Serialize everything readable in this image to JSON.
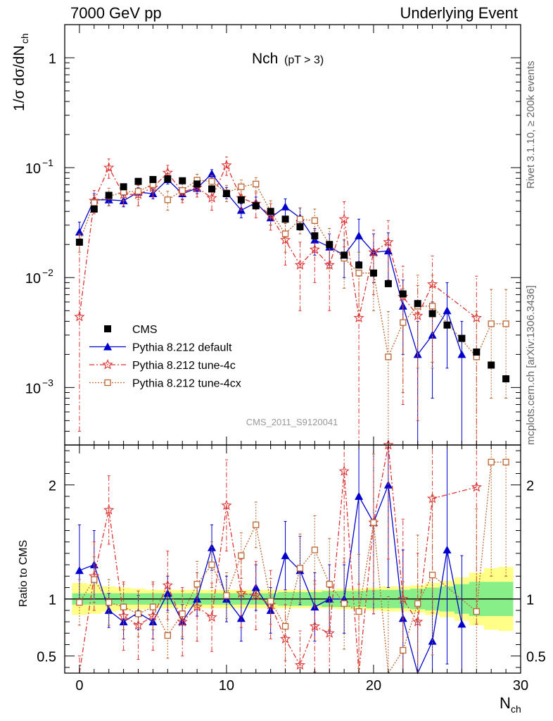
{
  "header": {
    "left": "7000 GeV pp",
    "right": "Underlying Event"
  },
  "side_labels": {
    "rivet": "Rivet 3.1.10, ≥ 200k events",
    "mcplots": "mcplots.cern.ch [arXiv:1306.3436]"
  },
  "chart_data": {
    "type": "scatter",
    "title": "Nch",
    "title_sub": "(pT >  3)",
    "watermark": "CMS_2011_S9120041",
    "xlabel": "N",
    "xlabel_sub": "ch",
    "ylabel_main": "1/σ dσ/dN",
    "ylabel_main_sub": "ch",
    "ylabel_ratio": "Ratio to CMS",
    "xlim": [
      -1,
      30
    ],
    "ylim_main": [
      0.0003,
      2
    ],
    "ylim_ratio": [
      0.35,
      2.35
    ],
    "yscale_main": "log",
    "x_ticks": [
      0,
      10,
      20,
      30
    ],
    "x_tick_labels": [
      "0",
      "10",
      "20",
      "30"
    ],
    "main_y_ticks": [
      1,
      0.1,
      0.01,
      0.001
    ],
    "main_y_tick_labels": [
      {
        "base": "1",
        "exp": ""
      },
      {
        "base": "10",
        "exp": "−1"
      },
      {
        "base": "10",
        "exp": "−2"
      },
      {
        "base": "10",
        "exp": "−3"
      }
    ],
    "ratio_y_ticks": [
      0.5,
      1,
      2
    ],
    "ratio_y_tick_labels": [
      "0.5",
      "1",
      "2"
    ],
    "legend_position": "lower-left",
    "legend": [
      {
        "name": "CMS",
        "color": "#000000",
        "marker": "square"
      },
      {
        "name": "Pythia 8.212 default",
        "color": "#0000cc",
        "marker": "triangle"
      },
      {
        "name": "Pythia 8.212 tune-4c",
        "color": "#dd3333",
        "marker": "star"
      },
      {
        "name": "Pythia 8.212 tune-4cx",
        "color": "#bb6633",
        "marker": "open-square"
      }
    ],
    "series": [
      {
        "name": "CMS",
        "x": [
          0,
          1,
          2,
          3,
          4,
          5,
          6,
          7,
          8,
          9,
          10,
          11,
          12,
          13,
          14,
          15,
          16,
          17,
          18,
          19,
          20,
          21,
          22,
          23,
          24,
          25,
          26,
          27,
          28,
          29
        ],
        "values": [
          0.021,
          0.042,
          0.056,
          0.067,
          0.075,
          0.078,
          0.079,
          0.076,
          0.071,
          0.064,
          0.058,
          0.051,
          0.045,
          0.04,
          0.034,
          0.029,
          0.024,
          0.02,
          0.016,
          0.013,
          0.011,
          0.0088,
          0.0071,
          0.0058,
          0.0047,
          0.0037,
          0.0028,
          0.0021,
          0.0016,
          0.0012
        ],
        "band_green": [
          0.05,
          0.05,
          0.05,
          0.05,
          0.05,
          0.05,
          0.05,
          0.05,
          0.05,
          0.05,
          0.05,
          0.05,
          0.05,
          0.05,
          0.06,
          0.06,
          0.06,
          0.07,
          0.07,
          0.07,
          0.08,
          0.08,
          0.08,
          0.09,
          0.1,
          0.11,
          0.13,
          0.15,
          0.15,
          0.15
        ],
        "band_yellow": [
          0.14,
          0.13,
          0.11,
          0.1,
          0.09,
          0.08,
          0.08,
          0.08,
          0.08,
          0.08,
          0.08,
          0.08,
          0.08,
          0.08,
          0.08,
          0.08,
          0.08,
          0.08,
          0.09,
          0.09,
          0.1,
          0.11,
          0.11,
          0.12,
          0.14,
          0.16,
          0.19,
          0.23,
          0.27,
          0.28
        ]
      },
      {
        "name": "Pythia 8.212 default",
        "x": [
          0,
          1,
          2,
          3,
          4,
          5,
          6,
          7,
          8,
          9,
          10,
          11,
          12,
          13,
          14,
          15,
          16,
          17,
          18,
          19,
          20,
          21,
          22,
          23,
          24,
          25,
          26
        ],
        "values": [
          0.026,
          0.051,
          0.051,
          0.05,
          0.06,
          0.058,
          0.078,
          0.058,
          0.065,
          0.088,
          0.059,
          0.041,
          0.048,
          0.035,
          0.044,
          0.035,
          0.022,
          0.019,
          0.016,
          0.024,
          0.017,
          0.0175,
          0.0055,
          0.002,
          0.003,
          0.005,
          0.002
        ],
        "err_lo": [
          0.006,
          0.007,
          0.006,
          0.006,
          0.006,
          0.006,
          0.007,
          0.007,
          0.007,
          0.008,
          0.007,
          0.006,
          0.006,
          0.005,
          0.008,
          0.008,
          0.006,
          0.006,
          0.006,
          0.01,
          0.008,
          0.008,
          0.0035,
          0.0017,
          0.0022,
          0.0035,
          0.0017
        ],
        "err_hi": [
          0.006,
          0.007,
          0.006,
          0.006,
          0.006,
          0.006,
          0.007,
          0.007,
          0.007,
          0.008,
          0.007,
          0.006,
          0.006,
          0.005,
          0.008,
          0.008,
          0.006,
          0.006,
          0.006,
          0.01,
          0.008,
          0.008,
          0.004,
          0.002,
          0.003,
          0.004,
          0.002
        ],
        "ratio": [
          1.25,
          1.3,
          0.9,
          0.8,
          0.88,
          0.8,
          1.05,
          0.8,
          1.0,
          1.45,
          1.0,
          0.83,
          1.1,
          0.9,
          1.38,
          1.25,
          0.93,
          1.0,
          1.0,
          1.9,
          1.67,
          2.0,
          0.83,
          0.3,
          0.63,
          1.43,
          0.78
        ],
        "ratio_lo": [
          0.3,
          0.3,
          0.15,
          0.15,
          0.15,
          0.15,
          0.15,
          0.15,
          0.15,
          0.2,
          0.2,
          0.2,
          0.2,
          0.2,
          0.3,
          0.3,
          0.3,
          0.3,
          0.3,
          0.9,
          0.8,
          0.9,
          0.6,
          0.5,
          0.6,
          1.0,
          0.6
        ],
        "ratio_hi": [
          0.4,
          0.3,
          0.15,
          0.15,
          0.15,
          0.15,
          0.15,
          0.15,
          0.15,
          0.2,
          0.2,
          0.2,
          0.2,
          0.2,
          0.3,
          0.3,
          0.3,
          0.3,
          0.3,
          0.9,
          0.8,
          0.9,
          0.6,
          0.5,
          0.6,
          1.0,
          0.6
        ]
      },
      {
        "name": "Pythia 8.212 tune-4c",
        "x": [
          0,
          1,
          2,
          3,
          4,
          5,
          6,
          7,
          8,
          9,
          10,
          11,
          12,
          13,
          14,
          15,
          16,
          17,
          18,
          19,
          20,
          21,
          22,
          23,
          24,
          27
        ],
        "values": [
          0.0044,
          0.05,
          0.1,
          0.057,
          0.057,
          0.066,
          0.09,
          0.06,
          0.066,
          0.053,
          0.105,
          0.053,
          0.047,
          0.037,
          0.022,
          0.013,
          0.018,
          0.013,
          0.034,
          0.0043,
          0.017,
          0.021,
          0.0067,
          0.0045,
          0.0087,
          0.0043
        ],
        "err_lo": [
          0.004,
          0.012,
          0.02,
          0.012,
          0.012,
          0.012,
          0.015,
          0.012,
          0.012,
          0.012,
          0.02,
          0.012,
          0.012,
          0.01,
          0.009,
          0.008,
          0.009,
          0.008,
          0.015,
          0.004,
          0.01,
          0.012,
          0.006,
          0.004,
          0.007,
          0.004
        ],
        "err_hi": [
          0.02,
          0.012,
          0.02,
          0.012,
          0.012,
          0.012,
          0.015,
          0.012,
          0.012,
          0.012,
          0.02,
          0.012,
          0.012,
          0.01,
          0.009,
          0.008,
          0.009,
          0.008,
          0.015,
          0.006,
          0.01,
          0.012,
          0.006,
          0.004,
          0.007,
          0.006
        ],
        "ratio": [
          0.2,
          1.2,
          1.78,
          0.85,
          0.77,
          0.85,
          1.12,
          0.8,
          0.93,
          0.84,
          1.82,
          1.05,
          1.03,
          0.95,
          0.65,
          0.42,
          0.76,
          0.7,
          2.12,
          0.33,
          1.67,
          2.35,
          1.0,
          0.8,
          1.88,
          1.98
        ],
        "ratio_lo": [
          0.3,
          0.3,
          0.3,
          0.3,
          0.3,
          0.3,
          0.3,
          0.3,
          0.3,
          0.3,
          0.4,
          0.3,
          0.3,
          0.3,
          0.3,
          0.3,
          0.4,
          0.4,
          0.8,
          0.8,
          0.8,
          1.0,
          0.7,
          0.6,
          1.0,
          1.2
        ],
        "ratio_hi": [
          0.3,
          0.3,
          0.3,
          0.3,
          0.3,
          0.3,
          0.3,
          0.3,
          0.3,
          0.3,
          0.4,
          0.3,
          0.3,
          0.3,
          0.3,
          0.3,
          0.4,
          0.4,
          0.8,
          0.8,
          0.8,
          1.0,
          0.7,
          0.6,
          1.0,
          1.2
        ]
      },
      {
        "name": "Pythia 8.212 tune-4cx",
        "x": [
          0,
          1,
          2,
          3,
          4,
          5,
          6,
          7,
          8,
          9,
          10,
          11,
          12,
          13,
          14,
          15,
          16,
          17,
          18,
          19,
          20,
          21,
          22,
          23,
          24,
          27,
          28,
          29
        ],
        "values": [
          0.021,
          0.048,
          0.055,
          0.06,
          0.061,
          0.07,
          0.051,
          0.062,
          0.077,
          0.075,
          0.059,
          0.067,
          0.071,
          0.04,
          0.025,
          0.034,
          0.033,
          0.02,
          0.015,
          0.011,
          0.011,
          0.0019,
          0.0039,
          0.0055,
          0.0055,
          0.0019,
          0.0038,
          0.0038
        ],
        "err_lo": [
          0.004,
          0.008,
          0.01,
          0.01,
          0.01,
          0.01,
          0.01,
          0.01,
          0.01,
          0.01,
          0.01,
          0.01,
          0.01,
          0.01,
          0.008,
          0.009,
          0.009,
          0.008,
          0.007,
          0.006,
          0.006,
          0.0018,
          0.003,
          0.004,
          0.004,
          0.0018,
          0.003,
          0.003
        ],
        "err_hi": [
          0.004,
          0.008,
          0.01,
          0.01,
          0.01,
          0.01,
          0.01,
          0.01,
          0.01,
          0.01,
          0.01,
          0.01,
          0.01,
          0.01,
          0.008,
          0.009,
          0.009,
          0.008,
          0.007,
          0.006,
          0.006,
          0.003,
          0.004,
          0.005,
          0.005,
          0.003,
          0.004,
          0.004
        ],
        "ratio": [
          0.97,
          1.17,
          0.97,
          0.93,
          0.87,
          0.93,
          0.68,
          0.87,
          1.13,
          1.3,
          1.03,
          1.38,
          1.65,
          0.98,
          0.76,
          1.27,
          1.43,
          1.13,
          0.96,
          0.89,
          1.67,
          0.22,
          0.55,
          0.96,
          1.21,
          0.89,
          2.2,
          2.2
        ],
        "ratio_lo": [
          0.2,
          0.2,
          0.2,
          0.2,
          0.2,
          0.2,
          0.2,
          0.2,
          0.2,
          0.2,
          0.2,
          0.2,
          0.2,
          0.2,
          0.3,
          0.3,
          0.3,
          0.4,
          0.4,
          0.5,
          0.6,
          0.8,
          0.6,
          0.6,
          0.7,
          0.9,
          1.0,
          1.0
        ],
        "ratio_hi": [
          0.2,
          0.2,
          0.2,
          0.2,
          0.2,
          0.2,
          0.2,
          0.2,
          0.2,
          0.2,
          0.2,
          0.2,
          0.2,
          0.2,
          0.3,
          0.3,
          0.3,
          0.4,
          0.4,
          0.5,
          0.6,
          0.8,
          0.6,
          0.6,
          0.7,
          0.9,
          1.0,
          1.0
        ]
      }
    ]
  }
}
